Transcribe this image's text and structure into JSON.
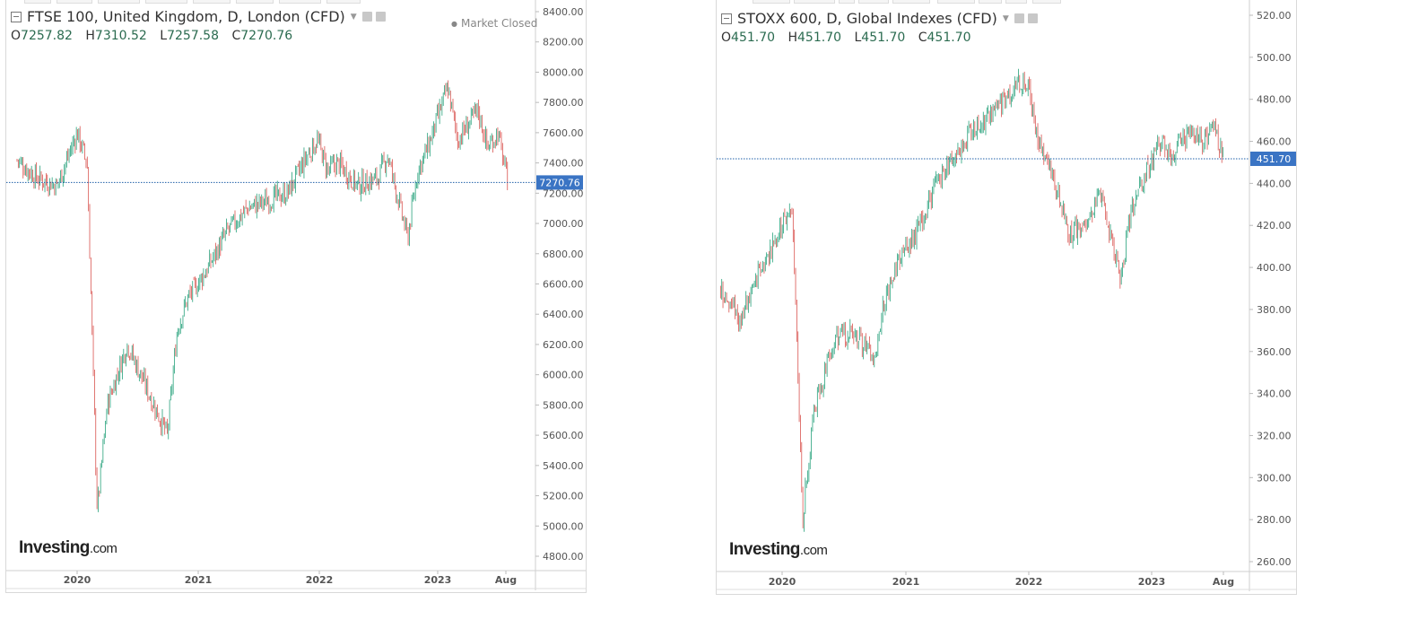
{
  "chart_data": [
    {
      "type": "candlestick",
      "title": "FTSE 100, United Kingdom, D, London (CFD)",
      "status": "Market Closed",
      "ohlc": {
        "O": "7257.82",
        "H": "7310.52",
        "L": "7257.58",
        "C": "7270.76"
      },
      "last_price_label": "7270.76",
      "last_price": 7270.76,
      "ylim": [
        4700,
        8450
      ],
      "yticks": [
        "8400.00",
        "8200.00",
        "8000.00",
        "7800.00",
        "7600.00",
        "7400.00",
        "7200.00",
        "7000.00",
        "6800.00",
        "6600.00",
        "6400.00",
        "6200.00",
        "6000.00",
        "5800.00",
        "5600.00",
        "5400.00",
        "5200.00",
        "5000.00",
        "4800.00"
      ],
      "xticks": [
        "2020",
        "2021",
        "2022",
        "2023",
        "Aug"
      ],
      "x": [
        "2019-07",
        "2019-09",
        "2019-11",
        "2020-01",
        "2020-02",
        "2020-03",
        "2020-04",
        "2020-06",
        "2020-08",
        "2020-10",
        "2020-11",
        "2020-12",
        "2021-02",
        "2021-04",
        "2021-06",
        "2021-08",
        "2021-10",
        "2021-12",
        "2022-01",
        "2022-02",
        "2022-03",
        "2022-05",
        "2022-07",
        "2022-08",
        "2022-10",
        "2022-11",
        "2022-12",
        "2023-02",
        "2023-03",
        "2023-05",
        "2023-06",
        "2023-07",
        "2023-08"
      ],
      "values": [
        7420,
        7300,
        7250,
        7600,
        7400,
        5100,
        5800,
        6200,
        5900,
        5600,
        6300,
        6500,
        6700,
        6950,
        7100,
        7150,
        7200,
        7450,
        7550,
        7350,
        7400,
        7250,
        7300,
        7450,
        6900,
        7350,
        7500,
        7900,
        7550,
        7750,
        7500,
        7600,
        7270
      ],
      "logo": {
        "main": "Investing",
        "suffix": ".com"
      }
    },
    {
      "type": "candlestick",
      "title": "STOXX 600, D, Global Indexes (CFD)",
      "ohlc": {
        "O": "451.70",
        "H": "451.70",
        "L": "451.70",
        "C": "451.70"
      },
      "last_price_label": "451.70",
      "last_price": 451.7,
      "ylim": [
        254,
        523
      ],
      "yticks": [
        "520.00",
        "500.00",
        "480.00",
        "460.00",
        "440.00",
        "420.00",
        "400.00",
        "380.00",
        "360.00",
        "340.00",
        "320.00",
        "300.00",
        "280.00",
        "260.00"
      ],
      "xticks": [
        "2020",
        "2021",
        "2022",
        "2023",
        "Aug"
      ],
      "x": [
        "2019-07",
        "2019-09",
        "2019-11",
        "2020-01",
        "2020-02",
        "2020-03",
        "2020-04",
        "2020-06",
        "2020-08",
        "2020-10",
        "2020-11",
        "2020-12",
        "2021-02",
        "2021-04",
        "2021-06",
        "2021-08",
        "2021-10",
        "2021-12",
        "2022-01",
        "2022-02",
        "2022-03",
        "2022-05",
        "2022-07",
        "2022-08",
        "2022-10",
        "2022-11",
        "2022-12",
        "2023-02",
        "2023-03",
        "2023-05",
        "2023-06",
        "2023-07",
        "2023-08"
      ],
      "values": [
        390,
        375,
        400,
        420,
        428,
        280,
        330,
        365,
        370,
        355,
        385,
        400,
        415,
        440,
        455,
        468,
        475,
        488,
        485,
        460,
        450,
        415,
        425,
        435,
        395,
        425,
        440,
        460,
        455,
        465,
        460,
        468,
        452
      ],
      "logo": {
        "main": "Investing",
        "suffix": ".com"
      }
    }
  ]
}
